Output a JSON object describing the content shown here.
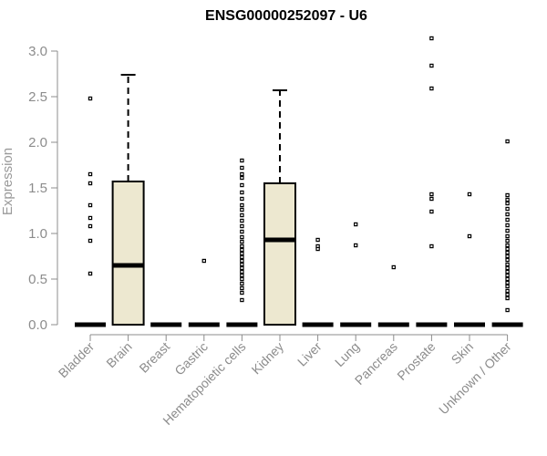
{
  "chart_data": {
    "type": "box",
    "title": "ENSG00000252097 - U6",
    "xlabel": "",
    "ylabel": "Expression",
    "ylim": [
      0,
      3.15
    ],
    "yticks": [
      "0.0",
      "0.5",
      "1.0",
      "1.5",
      "2.0",
      "2.5",
      "3.0"
    ],
    "ytick_values": [
      0,
      0.5,
      1.0,
      1.5,
      2.0,
      2.5,
      3.0
    ],
    "categories": [
      "Bladder",
      "Brain",
      "Breast",
      "Gastric",
      "Hematopoietic cells",
      "Kidney",
      "Liver",
      "Lung",
      "Pancreas",
      "Prostate",
      "Skin",
      "Unknown / Other"
    ],
    "box_fill": "#ede8d0",
    "series": [
      {
        "category": "Bladder",
        "q1": 0,
        "median": 0,
        "q3": 0,
        "whisker_low": 0,
        "whisker_high": 0,
        "outliers": [
          2.48,
          1.65,
          1.55,
          1.31,
          1.17,
          1.08,
          0.92,
          0.56
        ]
      },
      {
        "category": "Brain",
        "q1": 0,
        "median": 0.65,
        "q3": 1.57,
        "whisker_low": 0,
        "whisker_high": 2.74,
        "outliers": []
      },
      {
        "category": "Breast",
        "q1": 0,
        "median": 0,
        "q3": 0,
        "whisker_low": 0,
        "whisker_high": 0,
        "outliers": []
      },
      {
        "category": "Gastric",
        "q1": 0,
        "median": 0,
        "q3": 0,
        "whisker_low": 0,
        "whisker_high": 0,
        "outliers": [
          0.7
        ]
      },
      {
        "category": "Hematopoietic cells",
        "q1": 0,
        "median": 0,
        "q3": 0,
        "whisker_low": 0,
        "whisker_high": 0,
        "outliers": [
          1.8,
          1.72,
          1.65,
          1.61,
          1.53,
          1.45,
          1.38,
          1.31,
          1.26,
          1.2,
          1.14,
          1.08,
          1.02,
          0.96,
          0.91,
          0.86,
          0.82,
          0.78,
          0.74,
          0.7,
          0.66,
          0.62,
          0.58,
          0.54,
          0.5,
          0.45,
          0.4,
          0.35,
          0.27
        ]
      },
      {
        "category": "Kidney",
        "q1": 0,
        "median": 0.93,
        "q3": 1.55,
        "whisker_low": 0,
        "whisker_high": 2.57,
        "outliers": []
      },
      {
        "category": "Liver",
        "q1": 0,
        "median": 0,
        "q3": 0,
        "whisker_low": 0,
        "whisker_high": 0,
        "outliers": [
          0.93,
          0.86,
          0.83
        ]
      },
      {
        "category": "Lung",
        "q1": 0,
        "median": 0,
        "q3": 0,
        "whisker_low": 0,
        "whisker_high": 0,
        "outliers": [
          1.1,
          0.87
        ]
      },
      {
        "category": "Pancreas",
        "q1": 0,
        "median": 0,
        "q3": 0,
        "whisker_low": 0,
        "whisker_high": 0,
        "outliers": [
          0.63
        ]
      },
      {
        "category": "Prostate",
        "q1": 0,
        "median": 0,
        "q3": 0,
        "whisker_low": 0,
        "whisker_high": 0,
        "outliers": [
          3.14,
          2.84,
          2.59,
          1.43,
          1.38,
          1.24,
          0.86
        ]
      },
      {
        "category": "Skin",
        "q1": 0,
        "median": 0,
        "q3": 0,
        "whisker_low": 0,
        "whisker_high": 0,
        "outliers": [
          1.43,
          0.97
        ]
      },
      {
        "category": "Unknown / Other",
        "q1": 0,
        "median": 0,
        "q3": 0,
        "whisker_low": 0,
        "whisker_high": 0,
        "outliers": [
          2.01,
          1.42,
          1.37,
          1.33,
          1.27,
          1.21,
          1.15,
          1.09,
          1.03,
          0.97,
          0.92,
          0.87,
          0.83,
          0.79,
          0.75,
          0.71,
          0.66,
          0.62,
          0.58,
          0.54,
          0.5,
          0.46,
          0.42,
          0.37,
          0.33,
          0.29,
          0.16
        ]
      }
    ]
  }
}
